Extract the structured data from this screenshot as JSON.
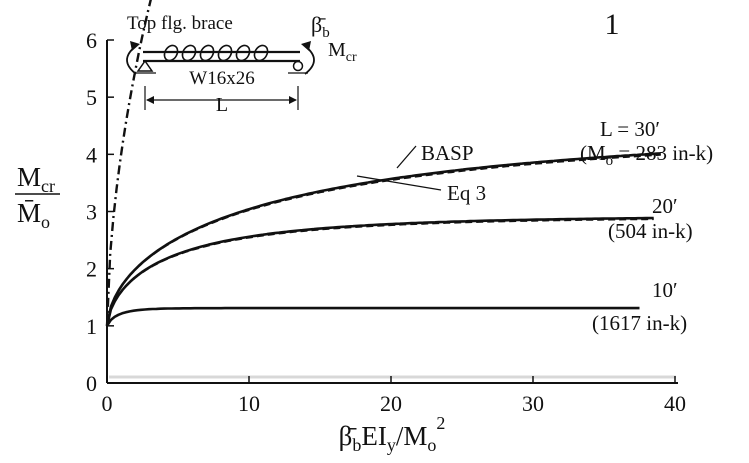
{
  "chart_data": {
    "type": "line",
    "figure_number": "1",
    "xlim": [
      0,
      40
    ],
    "ylim": [
      0,
      6
    ],
    "x_ticks": [
      0,
      10,
      20,
      30,
      40
    ],
    "y_ticks": [
      0,
      1,
      2,
      3,
      4,
      5,
      6
    ],
    "xlabel": {
      "main": "β̄",
      "sub1": "b",
      "mid": "EI",
      "sub2": "y",
      "slash": "/M",
      "sub3": "o",
      "sup": "2"
    },
    "ylabel": {
      "num_main": "M",
      "num_sub": "cr",
      "den_main": "M̄",
      "den_sub": "o"
    },
    "series": [
      {
        "label": "L = 30′",
        "note": "(M",
        "note_sub": "o",
        "note_val": " = 283 in-k)",
        "style": "solid",
        "smax": 4.5,
        "ksat": 0.08,
        "p": 0.6,
        "xmax": 39
      },
      {
        "label": "Eq 3",
        "style": "dashed",
        "smax": 4.47,
        "ksat": 0.08,
        "p": 0.6,
        "xmax": 39
      },
      {
        "label": "20′",
        "note": "(504 in-k)",
        "style": "solid",
        "smax": 2.92,
        "ksat": 0.22,
        "p": 0.65,
        "xmax": 38.5
      },
      {
        "style": "dashed",
        "smax": 2.9,
        "ksat": 0.22,
        "p": 0.65,
        "xmax": 38.5
      },
      {
        "label": "10′",
        "note": "(1617 in-k)",
        "style": "solid",
        "smax": 1.31,
        "ksat": 1.2,
        "p": 0.8,
        "xmax": 37.5
      },
      {
        "style": "dashdot",
        "smax": 40,
        "ksat": 0.015,
        "p": 0.6,
        "xmax": 31.5
      }
    ],
    "annotations": [
      "BASP",
      "Eq 3"
    ]
  },
  "inset": {
    "title": "Top flg. brace",
    "beta_main": "β̄",
    "beta_sub": "b",
    "moment_main": "M",
    "moment_sub": "cr",
    "section": "W16x26",
    "span": "L"
  }
}
